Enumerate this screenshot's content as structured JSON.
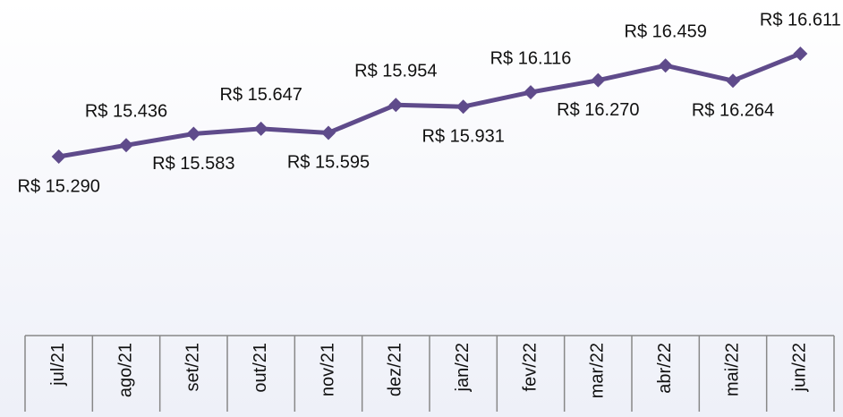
{
  "chart_data": {
    "type": "line",
    "categories": [
      "jul/21",
      "ago/21",
      "set/21",
      "out/21",
      "nov/21",
      "dez/21",
      "jan/22",
      "fev/22",
      "mar/22",
      "abr/22",
      "mai/22",
      "jun/22"
    ],
    "series": [
      {
        "color": "#5f4b8b",
        "values": [
          15290,
          15436,
          15583,
          15647,
          15595,
          15954,
          15931,
          16116,
          16270,
          16459,
          16264,
          16611
        ],
        "value_labels": [
          "R$ 15.290",
          "R$ 15.436",
          "R$ 15.583",
          "R$ 15.647",
          "R$ 15.595",
          "R$ 15.954",
          "R$ 15.931",
          "R$ 16.116",
          "R$ 16.270",
          "R$ 16.459",
          "R$ 16.264",
          "R$ 16.611"
        ]
      }
    ]
  }
}
